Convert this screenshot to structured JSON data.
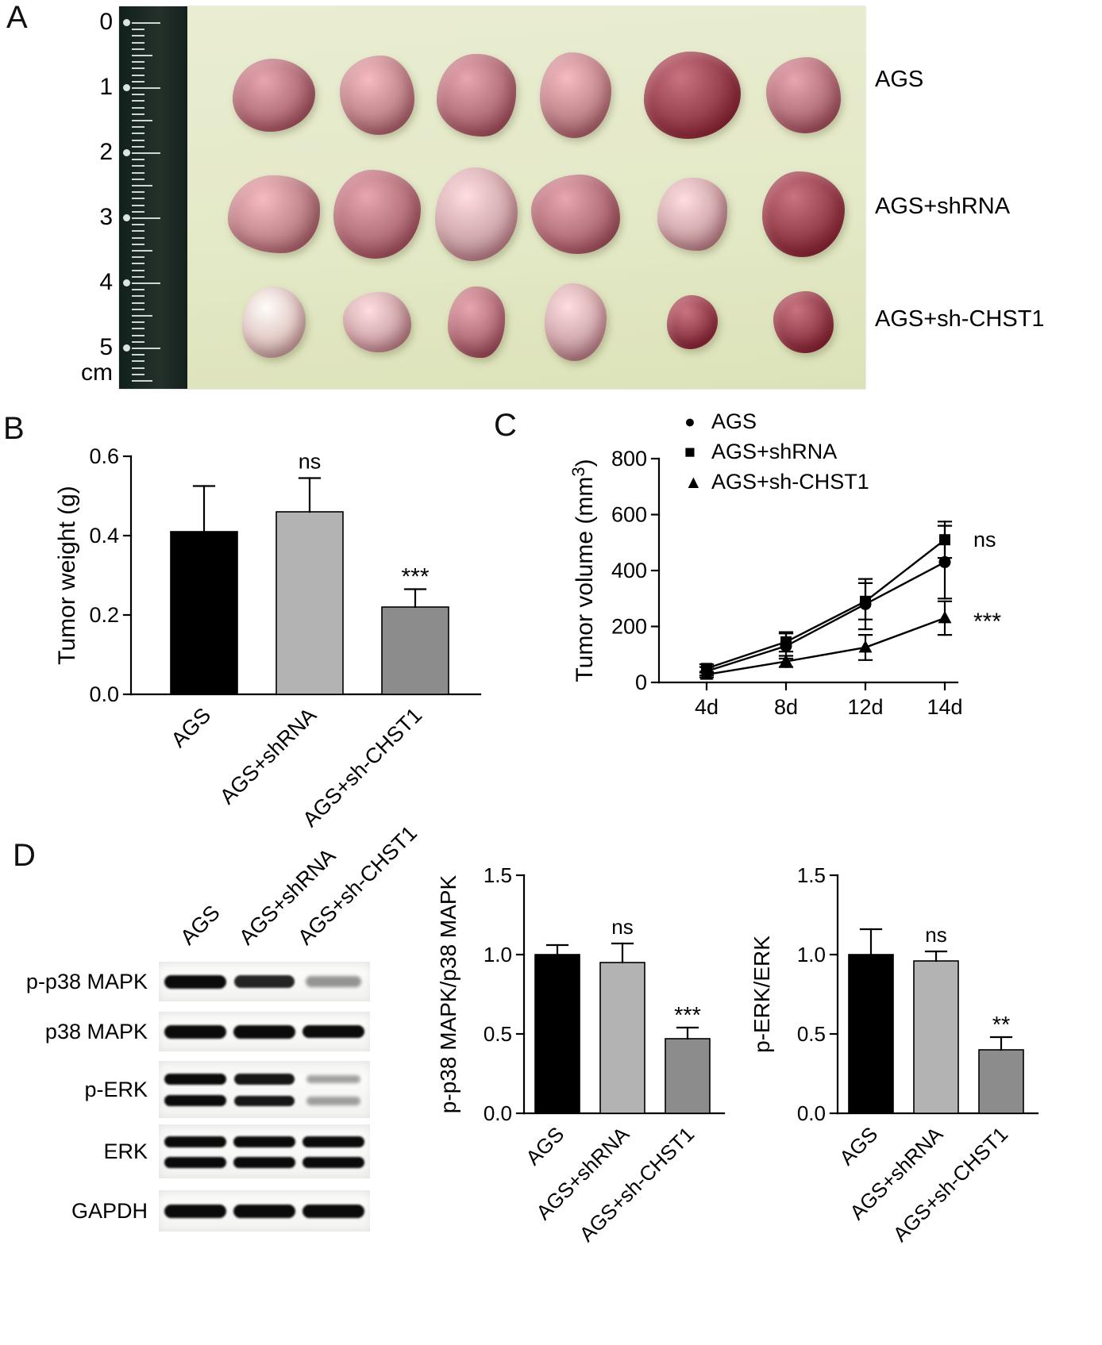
{
  "panel_a": {
    "label": "A",
    "ruler_numbers": [
      "0",
      "1",
      "2",
      "3",
      "4",
      "5"
    ],
    "ruler_unit": "cm",
    "row_labels": [
      "AGS",
      "AGS+shRNA",
      "AGS+sh-CHST1"
    ],
    "palette": [
      "#c58b91",
      "#b87680",
      "#a65863",
      "#d4adb0",
      "#9a4350",
      "#e3cdc9"
    ],
    "tumors": [
      [
        [
          104,
          92,
          1
        ],
        [
          94,
          100,
          0
        ],
        [
          100,
          104,
          1
        ],
        [
          90,
          108,
          0
        ],
        [
          122,
          110,
          4
        ],
        [
          94,
          96,
          1
        ]
      ],
      [
        [
          116,
          98,
          0
        ],
        [
          110,
          112,
          1
        ],
        [
          104,
          118,
          3
        ],
        [
          112,
          100,
          1
        ],
        [
          88,
          92,
          3
        ],
        [
          104,
          108,
          4
        ]
      ],
      [
        [
          80,
          90,
          5
        ],
        [
          86,
          76,
          3
        ],
        [
          72,
          90,
          1
        ],
        [
          78,
          98,
          3
        ],
        [
          64,
          68,
          4
        ],
        [
          76,
          78,
          4
        ]
      ]
    ]
  },
  "panel_b": {
    "label": "B"
  },
  "panel_c": {
    "label": "C"
  },
  "panel_d": {
    "label": "D",
    "col_labels": [
      "AGS",
      "AGS+shRNA",
      "AGS+sh-CHST1"
    ],
    "blots": [
      {
        "label": "p-p38 MAPK",
        "bands": 1,
        "intensities": [
          1,
          0.85,
          0.4
        ]
      },
      {
        "label": "p38 MAPK",
        "bands": 1,
        "intensities": [
          1,
          1,
          0.95
        ]
      },
      {
        "label": "p-ERK",
        "bands": 2,
        "intensities": [
          1,
          0.9,
          0.35
        ]
      },
      {
        "label": "ERK",
        "bands": 2,
        "intensities": [
          1,
          1,
          1
        ]
      },
      {
        "label": "GAPDH",
        "bands": 1,
        "intensities": [
          1,
          1,
          1
        ]
      }
    ]
  },
  "chart_data": [
    {
      "id": "tumor-weight",
      "type": "bar",
      "title": "",
      "ylabel": "Tumor weight (g)",
      "categories": [
        "AGS",
        "AGS+shRNA",
        "AGS+sh-CHST1"
      ],
      "values": [
        0.41,
        0.46,
        0.22
      ],
      "errors": [
        0.115,
        0.085,
        0.045
      ],
      "annotations": [
        "",
        "ns",
        "***"
      ],
      "ytick_vals": [
        0,
        0.2,
        0.4,
        0.6
      ],
      "ytick_labels": [
        "0.0",
        "0.2",
        "0.4",
        "0.6"
      ],
      "ylim": [
        0,
        0.6
      ],
      "grid": false,
      "colors": [
        "#000000",
        "#b3b3b3",
        "#8c8c8c"
      ]
    },
    {
      "id": "tumor-volume",
      "type": "line",
      "title": "",
      "ylabel_main": "Tumor volume (mm",
      "ylabel_sup": "3",
      "ylabel_close": ")",
      "x_labels": [
        "4d",
        "8d",
        "12d",
        "14d"
      ],
      "ytick_vals": [
        0,
        200,
        400,
        600,
        800
      ],
      "ytick_labels": [
        "0",
        "200",
        "400",
        "600",
        "800"
      ],
      "ylim": [
        0,
        800
      ],
      "grid": false,
      "legend_position": "top",
      "legend": [
        {
          "marker": "●",
          "label": "AGS"
        },
        {
          "marker": "■",
          "label": "AGS+shRNA"
        },
        {
          "marker": "▲",
          "label": "AGS+sh-CHST1"
        }
      ],
      "series": [
        {
          "name": "AGS",
          "marker": "circle",
          "values": [
            40,
            130,
            280,
            430
          ],
          "errors": [
            15,
            45,
            90,
            130
          ]
        },
        {
          "name": "AGS+shRNA",
          "marker": "square",
          "values": [
            50,
            145,
            290,
            510
          ],
          "errors": [
            15,
            35,
            65,
            65
          ]
        },
        {
          "name": "AGS+sh-CHST1",
          "marker": "triangle",
          "values": [
            28,
            75,
            125,
            230
          ],
          "errors": [
            10,
            20,
            45,
            60
          ]
        }
      ],
      "annotations": [
        {
          "text": "ns",
          "series": 1
        },
        {
          "text": "***",
          "series": 2
        }
      ]
    },
    {
      "id": "p38-ratio",
      "type": "bar",
      "title": "",
      "ylabel": "p-p38 MAPK/p38 MAPK",
      "categories": [
        "AGS",
        "AGS+shRNA",
        "AGS+sh-CHST1"
      ],
      "values": [
        1.0,
        0.95,
        0.47
      ],
      "errors": [
        0.06,
        0.12,
        0.07
      ],
      "annotations": [
        "",
        "ns",
        "***"
      ],
      "ytick_vals": [
        0,
        0.5,
        1.0,
        1.5
      ],
      "ytick_labels": [
        "0.0",
        "0.5",
        "1.0",
        "1.5"
      ],
      "ylim": [
        0,
        1.5
      ],
      "grid": false,
      "colors": [
        "#000000",
        "#b3b3b3",
        "#8c8c8c"
      ]
    },
    {
      "id": "erk-ratio",
      "type": "bar",
      "title": "",
      "ylabel": "p-ERK/ERK",
      "categories": [
        "AGS",
        "AGS+shRNA",
        "AGS+sh-CHST1"
      ],
      "values": [
        1.0,
        0.96,
        0.4
      ],
      "errors": [
        0.16,
        0.06,
        0.08
      ],
      "annotations": [
        "",
        "ns",
        "**"
      ],
      "ytick_vals": [
        0,
        0.5,
        1.0,
        1.5
      ],
      "ytick_labels": [
        "0.0",
        "0.5",
        "1.0",
        "1.5"
      ],
      "ylim": [
        0,
        1.5
      ],
      "grid": false,
      "colors": [
        "#000000",
        "#b3b3b3",
        "#8c8c8c"
      ]
    }
  ]
}
